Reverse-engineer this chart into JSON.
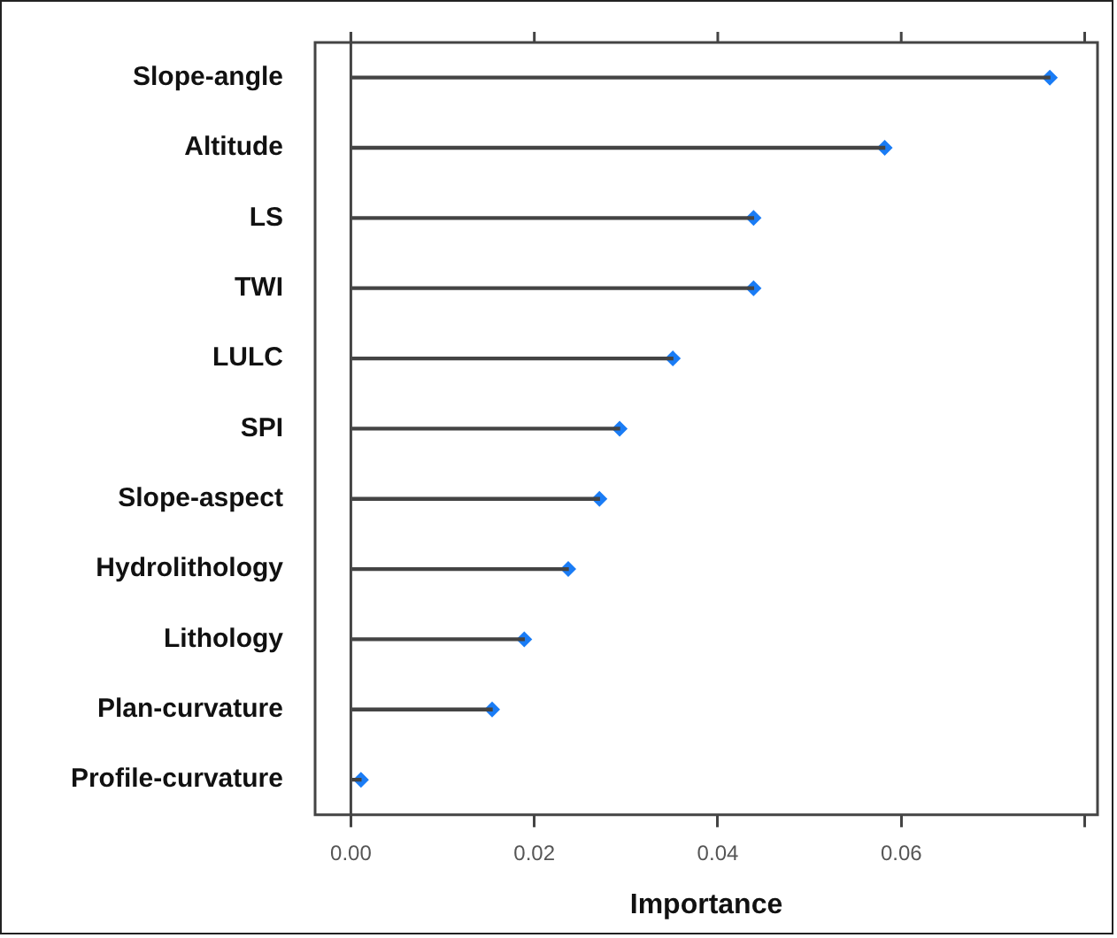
{
  "chart_data": {
    "type": "lollipop",
    "orientation": "horizontal",
    "xlabel": "Importance",
    "categories": [
      "Slope-angle",
      "Altitude",
      "LS",
      "TWI",
      "LULC",
      "SPI",
      "Slope-aspect",
      "Hydrolithology",
      "Lithology",
      "Plan-curvature",
      "Profile-curvature"
    ],
    "series": [
      {
        "color": "#1a7cf5",
        "values": [
          0.0762,
          0.0582,
          0.0439,
          0.0439,
          0.0351,
          0.0293,
          0.0271,
          0.0237,
          0.0189,
          0.0154,
          0.0011
        ]
      }
    ],
    "xlim": [
      -0.0039,
      0.0814
    ],
    "xticks": [
      {
        "value": 0,
        "label": "0.00"
      },
      {
        "value": 0.02,
        "label": "0.02"
      },
      {
        "value": 0.04,
        "label": "0.04"
      },
      {
        "value": 0.06,
        "label": "0.06"
      },
      {
        "value": 0.08,
        "label": null
      }
    ],
    "ref_lines": [
      {
        "axis": "x",
        "value": 0
      }
    ],
    "marker": "diamond",
    "grid": false,
    "legend": false
  }
}
